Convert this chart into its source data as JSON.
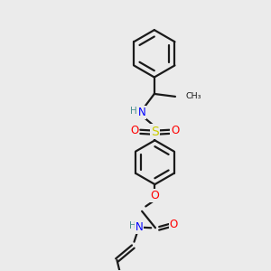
{
  "background_color": "#ebebeb",
  "bond_color": "#1a1a1a",
  "N_color": "#0000ff",
  "H_color": "#4a9090",
  "O_color": "#ff0000",
  "S_color": "#cccc00",
  "lw": 1.6,
  "fig_size": [
    3.0,
    3.0
  ],
  "dpi": 100,
  "xlim": [
    0,
    10
  ],
  "ylim": [
    0,
    10
  ]
}
